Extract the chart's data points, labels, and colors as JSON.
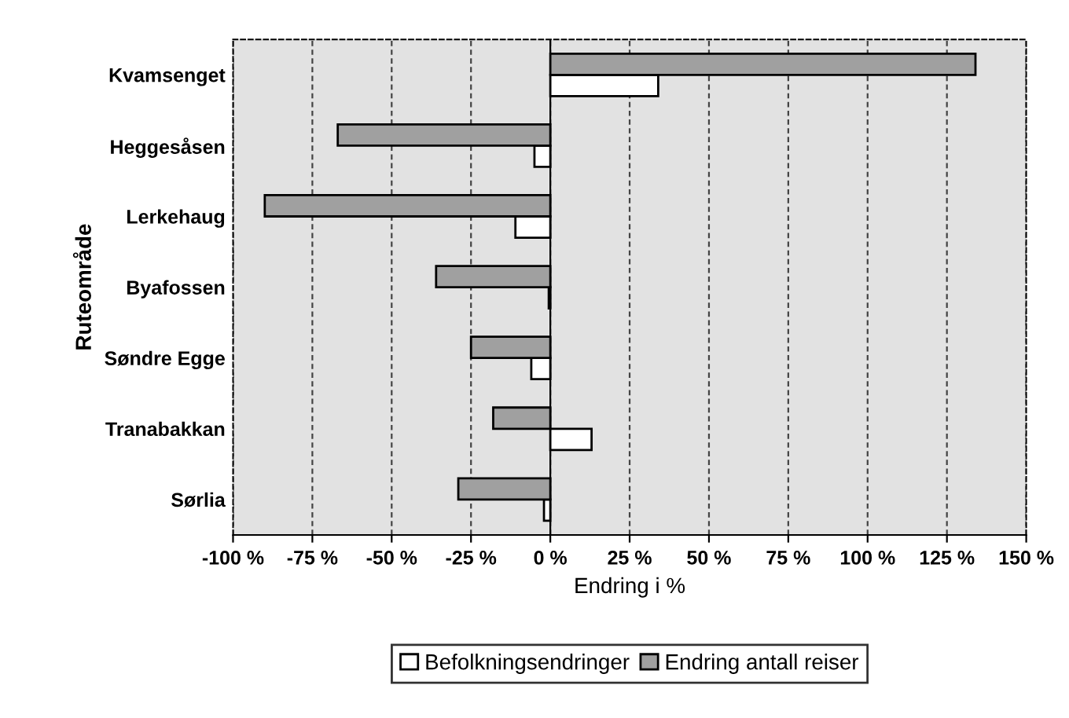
{
  "chart_data": {
    "type": "bar",
    "orientation": "horizontal",
    "categories": [
      "Kvamsenget",
      "Heggesåsen",
      "Lerkehaug",
      "Byafossen",
      "Søndre Egge",
      "Tranabakkan",
      "Sørlia"
    ],
    "series": [
      {
        "name": "Befolkningsendringer",
        "color": "#ffffff",
        "values": [
          34,
          -5,
          -11,
          -0.5,
          -6,
          13,
          -2
        ]
      },
      {
        "name": "Endring antall reiser",
        "color": "#a0a0a0",
        "values": [
          134,
          -67,
          -90,
          -36,
          -25,
          -18,
          -29
        ]
      }
    ],
    "xlim": [
      -100,
      150
    ],
    "xticks": [
      {
        "value": -100,
        "label": "-100 %"
      },
      {
        "value": -75,
        "label": "-75 %"
      },
      {
        "value": -50,
        "label": "-50 %"
      },
      {
        "value": -25,
        "label": "-25 %"
      },
      {
        "value": 0,
        "label": "0 %"
      },
      {
        "value": 25,
        "label": "25 %"
      },
      {
        "value": 50,
        "label": "50 %"
      },
      {
        "value": 75,
        "label": "75 %"
      },
      {
        "value": 100,
        "label": "100 %"
      },
      {
        "value": 125,
        "label": "125 %"
      },
      {
        "value": 150,
        "label": "150 %"
      }
    ],
    "xlabel": "Endring i %",
    "ylabel": "Ruteområde",
    "grid": "x",
    "legend": "bottom"
  }
}
